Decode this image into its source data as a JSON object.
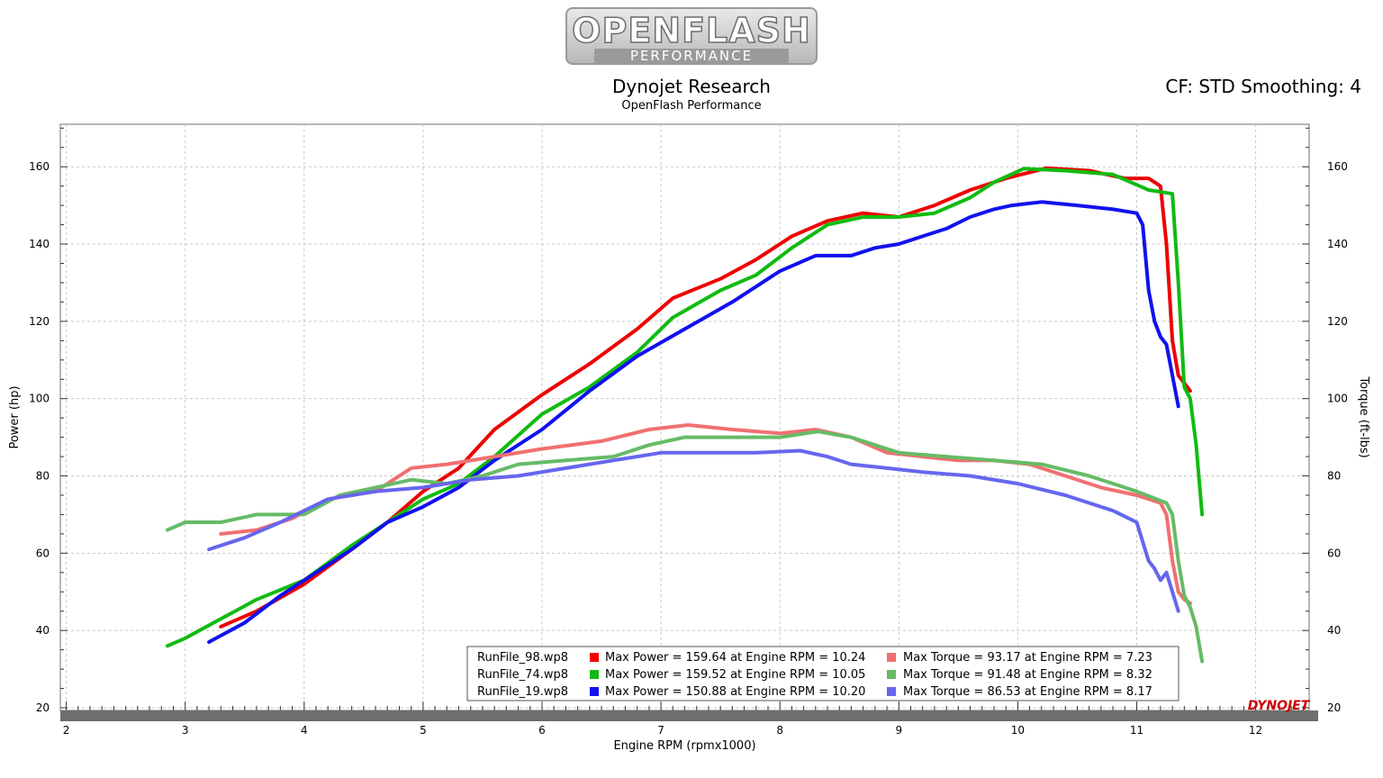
{
  "header": {
    "logo_top": "OPENFLASH",
    "logo_bottom": "PERFORMANCE",
    "title": "Dynojet Research",
    "subtitle": "OpenFlash Performance",
    "cf_label": "CF: STD Smoothing: 4"
  },
  "brand": "DYNOJET",
  "colors": {
    "red": "#ee0000",
    "green": "#11bb11",
    "blue": "#1111ee",
    "red_light": "#f07070",
    "green_light": "#66bb66",
    "blue_light": "#6666ee",
    "grid": "#c8c8c8",
    "frame": "#707070"
  },
  "chart_data": {
    "type": "line",
    "xlabel": "Engine RPM (rpmx1000)",
    "ylabel": "Power (hp)",
    "y2label": "Torque (ft-lbs)",
    "xlim": [
      1.95,
      12.45
    ],
    "ylim": [
      19.3,
      171
    ],
    "x_ticks": [
      2,
      3,
      4,
      5,
      6,
      7,
      8,
      9,
      10,
      11,
      12
    ],
    "y_ticks": [
      20,
      40,
      60,
      80,
      100,
      120,
      140,
      160
    ],
    "y2_ticks": [
      20,
      40,
      60,
      80,
      100,
      120,
      140,
      160
    ],
    "series": [
      {
        "name": "RunFile_98.wp8 Power",
        "measure": "power",
        "color_key": "red",
        "x": [
          3.3,
          3.6,
          4.0,
          4.4,
          4.7,
          5.0,
          5.3,
          5.6,
          6.0,
          6.4,
          6.8,
          7.1,
          7.5,
          7.8,
          8.1,
          8.4,
          8.7,
          9.0,
          9.3,
          9.6,
          9.9,
          10.24,
          10.6,
          10.9,
          11.1,
          11.2,
          11.25,
          11.3,
          11.35,
          11.4,
          11.45
        ],
        "y": [
          41,
          45,
          52,
          61,
          68,
          76,
          82,
          92,
          101,
          109,
          118,
          126,
          131,
          136,
          142,
          146,
          148,
          147,
          150,
          154,
          157,
          159.64,
          159,
          157,
          157,
          155,
          140,
          115,
          106,
          104,
          102
        ]
      },
      {
        "name": "RunFile_74.wp8 Power",
        "measure": "power",
        "color_key": "green",
        "x": [
          2.85,
          3.0,
          3.3,
          3.6,
          4.0,
          4.4,
          4.7,
          5.0,
          5.3,
          5.6,
          6.0,
          6.4,
          6.8,
          7.1,
          7.5,
          7.8,
          8.1,
          8.4,
          8.7,
          9.0,
          9.3,
          9.6,
          9.8,
          10.05,
          10.4,
          10.8,
          11.1,
          11.3,
          11.35,
          11.4,
          11.45,
          11.5,
          11.55
        ],
        "y": [
          36,
          38,
          43,
          48,
          53,
          62,
          68,
          74,
          78,
          85,
          96,
          103,
          112,
          121,
          128,
          132,
          139,
          145,
          147,
          147,
          148,
          152,
          156,
          159.52,
          159,
          158,
          154,
          153,
          130,
          103,
          100,
          88,
          70
        ]
      },
      {
        "name": "RunFile_19.wp8 Power",
        "measure": "power",
        "color_key": "blue",
        "x": [
          3.2,
          3.5,
          3.8,
          4.1,
          4.4,
          4.7,
          5.0,
          5.3,
          5.6,
          6.0,
          6.4,
          6.8,
          7.2,
          7.6,
          8.0,
          8.3,
          8.6,
          8.8,
          9.0,
          9.2,
          9.4,
          9.6,
          9.8,
          9.95,
          10.2,
          10.5,
          10.8,
          11.0,
          11.05,
          11.1,
          11.15,
          11.2,
          11.25,
          11.3,
          11.35
        ],
        "y": [
          37,
          42,
          49,
          55,
          61,
          68,
          72,
          77,
          84,
          92,
          102,
          111,
          118,
          125,
          133,
          137,
          137,
          139,
          140,
          142,
          144,
          147,
          149,
          150,
          150.88,
          150,
          149,
          148,
          145,
          128,
          120,
          116,
          114,
          106,
          98
        ]
      },
      {
        "name": "RunFile_98.wp8 Torque",
        "measure": "torque",
        "color_key": "red_light",
        "x": [
          3.3,
          3.6,
          3.9,
          4.2,
          4.6,
          4.9,
          5.2,
          5.6,
          6.0,
          6.5,
          6.9,
          7.23,
          7.6,
          8.0,
          8.3,
          8.6,
          8.9,
          9.2,
          9.5,
          9.8,
          10.1,
          10.4,
          10.7,
          11.0,
          11.2,
          11.25,
          11.3,
          11.35,
          11.4,
          11.45
        ],
        "y": [
          65,
          66,
          69,
          74,
          76,
          82,
          83,
          85,
          87,
          89,
          92,
          93.17,
          92,
          91,
          92,
          90,
          86,
          85,
          84,
          84,
          83,
          80,
          77,
          75,
          73,
          70,
          58,
          50,
          48,
          47
        ]
      },
      {
        "name": "RunFile_74.wp8 Torque",
        "measure": "torque",
        "color_key": "green_light",
        "x": [
          2.85,
          3.0,
          3.3,
          3.6,
          4.0,
          4.3,
          4.6,
          4.9,
          5.2,
          5.5,
          5.8,
          6.2,
          6.6,
          6.9,
          7.2,
          7.6,
          8.0,
          8.32,
          8.6,
          9.0,
          9.4,
          9.8,
          10.2,
          10.6,
          11.0,
          11.25,
          11.3,
          11.35,
          11.4,
          11.45,
          11.5,
          11.55
        ],
        "y": [
          66,
          68,
          68,
          70,
          70,
          75,
          77,
          79,
          78,
          80,
          83,
          84,
          85,
          88,
          90,
          90,
          90,
          91.48,
          90,
          86,
          85,
          84,
          83,
          80,
          76,
          73,
          70,
          58,
          49,
          46,
          41,
          32
        ]
      },
      {
        "name": "RunFile_19.wp8 Torque",
        "measure": "torque",
        "color_key": "blue_light",
        "x": [
          3.2,
          3.5,
          3.8,
          4.2,
          4.6,
          5.0,
          5.4,
          5.8,
          6.2,
          6.6,
          7.0,
          7.4,
          7.8,
          8.17,
          8.4,
          8.6,
          8.9,
          9.2,
          9.6,
          10.0,
          10.4,
          10.8,
          11.0,
          11.05,
          11.1,
          11.15,
          11.2,
          11.25,
          11.3,
          11.35
        ],
        "y": [
          61,
          64,
          68,
          74,
          76,
          77,
          79,
          80,
          82,
          84,
          86,
          86,
          86,
          86.53,
          85,
          83,
          82,
          81,
          80,
          78,
          75,
          71,
          68,
          63,
          58,
          56,
          53,
          55,
          50,
          45
        ]
      }
    ],
    "legend": [
      {
        "run": "RunFile_98.wp8",
        "power": "Max Power = 159.64 at Engine RPM = 10.24",
        "torque": "Max Torque = 93.17 at Engine RPM = 7.23",
        "power_color": "red",
        "torque_color": "red_light"
      },
      {
        "run": "RunFile_74.wp8",
        "power": "Max Power = 159.52 at Engine RPM = 10.05",
        "torque": "Max Torque = 91.48 at Engine RPM = 8.32",
        "power_color": "green",
        "torque_color": "green_light"
      },
      {
        "run": "RunFile_19.wp8",
        "power": "Max Power = 150.88 at Engine RPM = 10.20",
        "torque": "Max Torque = 86.53 at Engine RPM = 8.17",
        "power_color": "blue",
        "torque_color": "blue_light"
      }
    ],
    "legend_position": "bottom-right"
  }
}
